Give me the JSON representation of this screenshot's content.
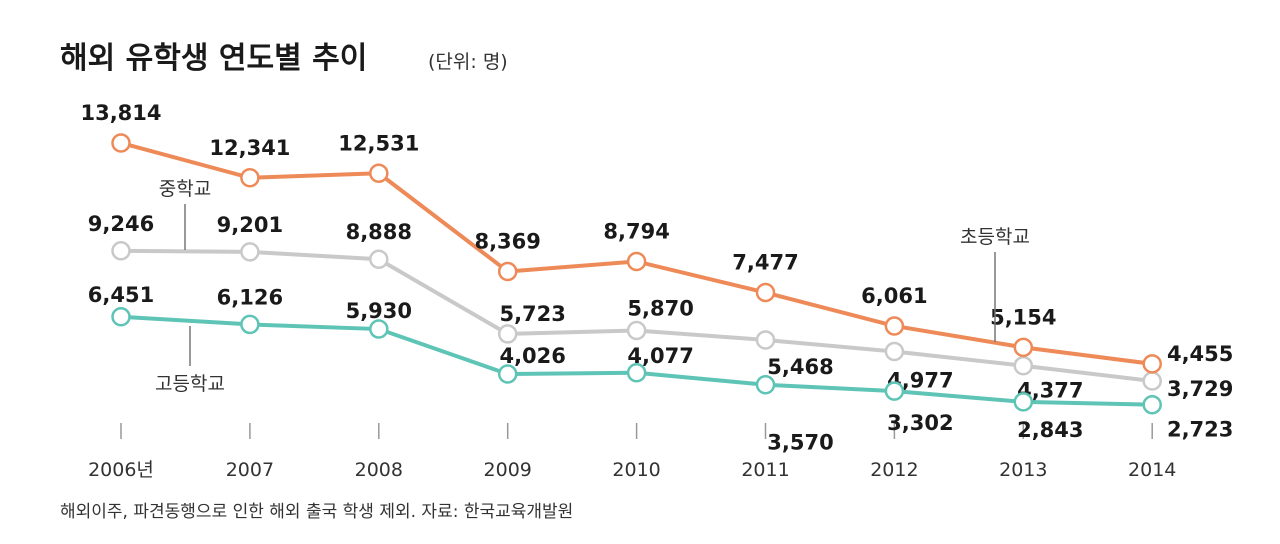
{
  "chart_data": {
    "type": "line",
    "title": "해외 유학생 연도별 추이",
    "unit": "(단위: 명)",
    "categories": [
      "2006년",
      "2007",
      "2008",
      "2009",
      "2010",
      "2011",
      "2012",
      "2013",
      "2014"
    ],
    "series": [
      {
        "name": "초등학교",
        "color": "#EE8A58",
        "values": [
          13814,
          12341,
          12531,
          8369,
          8794,
          7477,
          6061,
          5154,
          4455
        ],
        "labels": [
          "13,814",
          "12,341",
          "12,531",
          "8,369",
          "8,794",
          "7,477",
          "6,061",
          "5,154",
          "4,455"
        ]
      },
      {
        "name": "중학교",
        "color": "#C9C9C9",
        "values": [
          9246,
          9201,
          8888,
          5723,
          5870,
          5468,
          4977,
          4377,
          3729
        ],
        "labels": [
          "9,246",
          "9,201",
          "8,888",
          "5,723",
          "5,870",
          "5,468",
          "4,977",
          "4,377",
          "3,729"
        ]
      },
      {
        "name": "고등학교",
        "color": "#5EC4B5",
        "values": [
          6451,
          6126,
          5930,
          4026,
          4077,
          3570,
          3302,
          2843,
          2723
        ],
        "labels": [
          "6,451",
          "6,126",
          "5,930",
          "4,026",
          "4,077",
          "3,570",
          "3,302",
          "2,843",
          "2,723"
        ]
      }
    ],
    "grid": false,
    "legend": "inline labels"
  },
  "footnote": "해외이주, 파견동행으로 인한 해외 출국 학생 제외. 자료: 한국교육개발원"
}
